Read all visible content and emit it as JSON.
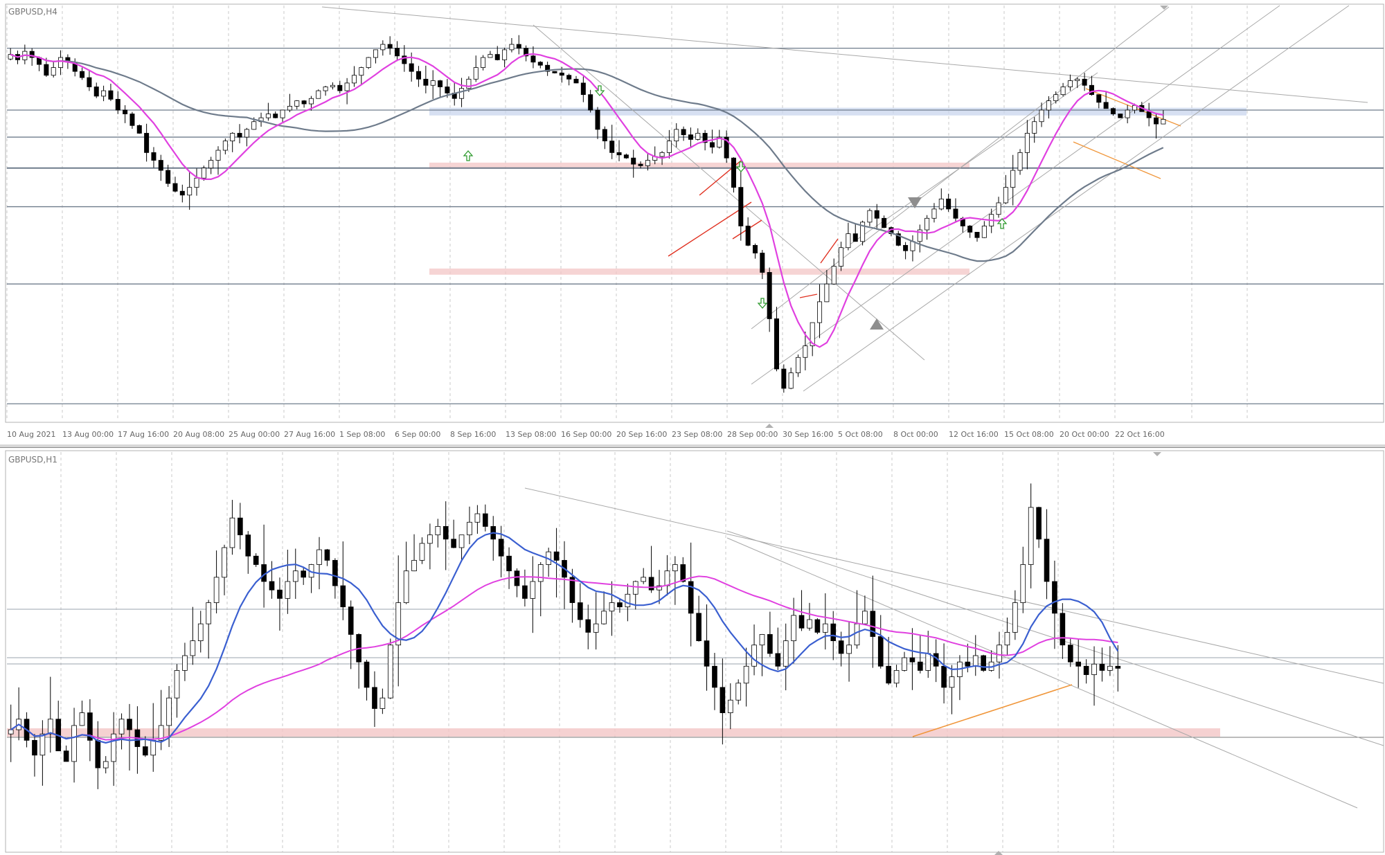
{
  "colors": {
    "ma_fast": "#e040e0",
    "ma_slow": "#6e7b8b",
    "ma_blue": "#3a5fd0",
    "trend_line": "#a8a8a8",
    "level_line": "#6e7b8b",
    "zone_pink": "#f3c6c6",
    "zone_blue": "#c9d6ee",
    "wedge_orange": "#f0963a",
    "pattern_red": "#e03020",
    "arrow_green": "#2e9a2e",
    "marker_gray": "#8e8e8e"
  },
  "chart_data": [
    {
      "type": "candlestick",
      "symbol_label": "GBPUSD,H4",
      "x_tick_labels": [
        "10 Aug 2021",
        "13 Aug 00:00",
        "17 Aug 16:00",
        "20 Aug 08:00",
        "25 Aug 00:00",
        "27 Aug 16:00",
        "1 Sep 08:00",
        "6 Sep 00:00",
        "8 Sep 16:00",
        "13 Sep 08:00",
        "16 Sep 00:00",
        "20 Sep 16:00",
        "23 Sep 08:00",
        "28 Sep 00:00",
        "30 Sep 16:00",
        "5 Oct 08:00",
        "8 Oct 00:00",
        "12 Oct 16:00",
        "15 Oct 08:00",
        "20 Oct 00:00",
        "22 Oct 16:00"
      ],
      "closes": [
        1.3872,
        1.3865,
        1.3876,
        1.3868,
        1.3859,
        1.3845,
        1.3855,
        1.3868,
        1.3862,
        1.385,
        1.3842,
        1.383,
        1.3818,
        1.3825,
        1.3814,
        1.38,
        1.3795,
        1.378,
        1.377,
        1.3745,
        1.3735,
        1.3722,
        1.3705,
        1.3695,
        1.369,
        1.37,
        1.3712,
        1.3725,
        1.3735,
        1.3748,
        1.376,
        1.377,
        1.3765,
        1.3775,
        1.3785,
        1.379,
        1.3795,
        1.379,
        1.38,
        1.3805,
        1.3812,
        1.3808,
        1.3815,
        1.3825,
        1.383,
        1.3832,
        1.3825,
        1.3835,
        1.3845,
        1.3855,
        1.3868,
        1.3878,
        1.3885,
        1.388,
        1.387,
        1.386,
        1.385,
        1.384,
        1.3832,
        1.3838,
        1.383,
        1.3822,
        1.3815,
        1.3828,
        1.384,
        1.3855,
        1.3868,
        1.3872,
        1.3865,
        1.3878,
        1.3885,
        1.388,
        1.387,
        1.3862,
        1.3858,
        1.385,
        1.3848,
        1.3845,
        1.384,
        1.3835,
        1.382,
        1.38,
        1.3775,
        1.376,
        1.3745,
        1.3742,
        1.3738,
        1.373,
        1.3728,
        1.3735,
        1.374,
        1.3745,
        1.376,
        1.3775,
        1.3768,
        1.3762,
        1.377,
        1.3758,
        1.3752,
        1.3765,
        1.3738,
        1.37,
        1.365,
        1.3625,
        1.3615,
        1.359,
        1.353,
        1.3465,
        1.344,
        1.346,
        1.348,
        1.3495,
        1.3525,
        1.3552,
        1.3575,
        1.3598,
        1.3622,
        1.364,
        1.363,
        1.3655,
        1.367,
        1.366,
        1.3648,
        1.364,
        1.3625,
        1.3618,
        1.363,
        1.3645,
        1.366,
        1.3672,
        1.3685,
        1.3672,
        1.366,
        1.365,
        1.3642,
        1.3635,
        1.365,
        1.3665,
        1.368,
        1.37,
        1.3722,
        1.3745,
        1.377,
        1.3785,
        1.38,
        1.3812,
        1.382,
        1.383,
        1.3838,
        1.384,
        1.3832,
        1.382,
        1.381,
        1.3802,
        1.3795,
        1.379,
        1.38,
        1.3806,
        1.3798,
        1.379,
        1.3782,
        1.3788
      ],
      "h_levels": [
        1.388,
        1.38,
        1.3765,
        1.3725,
        1.3675,
        1.3575,
        1.342
      ],
      "zones": [
        {
          "from": 1.3793,
          "to": 1.3803,
          "color": "#c9d6ee"
        },
        {
          "from": 1.3724,
          "to": 1.3732,
          "color": "#f3c6c6"
        },
        {
          "from": 1.3587,
          "to": 1.3595,
          "color": "#f3c6c6"
        }
      ]
    },
    {
      "type": "candlestick",
      "symbol_label": "GBPUSD,H1",
      "closes": [
        1.374,
        1.3745,
        1.3735,
        1.3728,
        1.3738,
        1.3745,
        1.373,
        1.3725,
        1.3742,
        1.3748,
        1.3735,
        1.3722,
        1.3725,
        1.3738,
        1.3745,
        1.374,
        1.3732,
        1.3728,
        1.3735,
        1.3742,
        1.3755,
        1.3768,
        1.3775,
        1.3782,
        1.379,
        1.38,
        1.3812,
        1.3826,
        1.384,
        1.3832,
        1.3822,
        1.3818,
        1.381,
        1.3806,
        1.3802,
        1.381,
        1.3815,
        1.3812,
        1.3818,
        1.3825,
        1.382,
        1.3808,
        1.3798,
        1.3785,
        1.3772,
        1.376,
        1.375,
        1.3755,
        1.378,
        1.38,
        1.3815,
        1.382,
        1.3828,
        1.3832,
        1.3836,
        1.383,
        1.3826,
        1.3832,
        1.3838,
        1.3842,
        1.3836,
        1.383,
        1.3822,
        1.3815,
        1.3808,
        1.3802,
        1.381,
        1.3818,
        1.3824,
        1.382,
        1.3812,
        1.38,
        1.3792,
        1.3786,
        1.379,
        1.3796,
        1.38,
        1.3798,
        1.3804,
        1.381,
        1.3812,
        1.3806,
        1.3808,
        1.3815,
        1.3818,
        1.381,
        1.3795,
        1.3782,
        1.377,
        1.376,
        1.3748,
        1.3754,
        1.3762,
        1.377,
        1.378,
        1.3785,
        1.3776,
        1.377,
        1.3782,
        1.3794,
        1.3788,
        1.3792,
        1.3786,
        1.379,
        1.3782,
        1.3776,
        1.378,
        1.379,
        1.3796,
        1.3784,
        1.377,
        1.3762,
        1.3768,
        1.3774,
        1.3772,
        1.3768,
        1.3776,
        1.377,
        1.376,
        1.3765,
        1.3772,
        1.377,
        1.3775,
        1.3768,
        1.3772,
        1.378,
        1.3786,
        1.38,
        1.3818,
        1.3845,
        1.383,
        1.381,
        1.3795,
        1.378,
        1.3772,
        1.377,
        1.3766,
        1.3771,
        1.3768,
        1.377,
        1.3769
      ]
    }
  ]
}
